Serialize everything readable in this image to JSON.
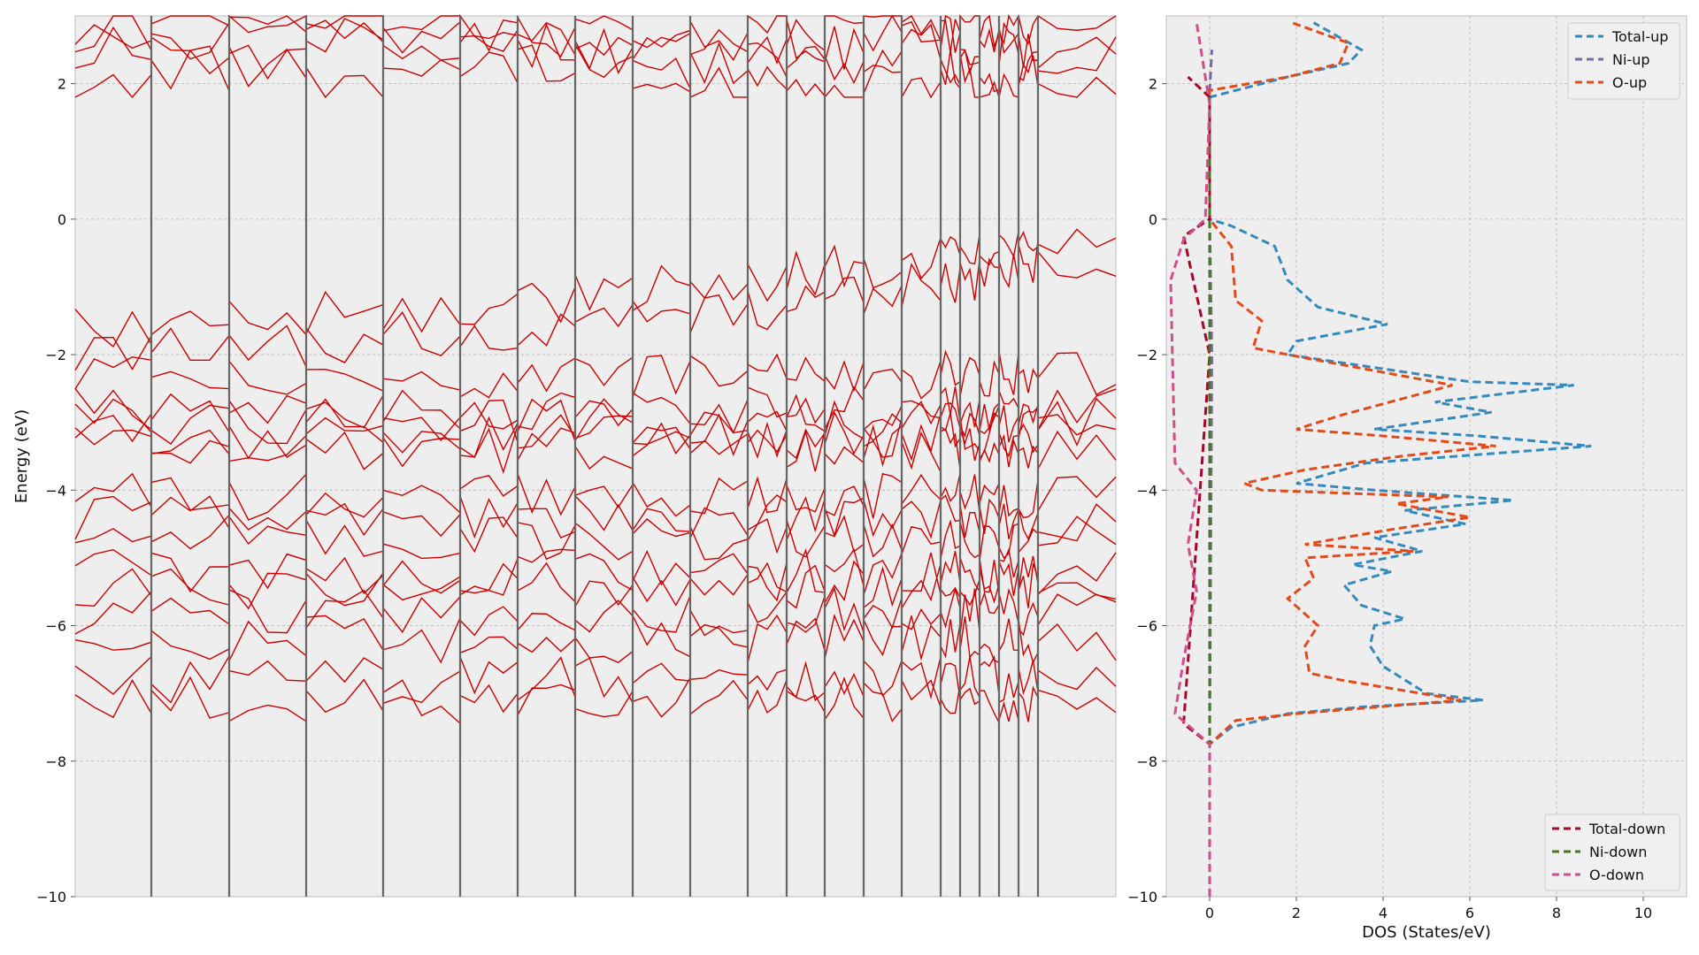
{
  "chart_data": [
    {
      "type": "line",
      "title": "",
      "xlabel": "",
      "ylabel": "Energy (eV)",
      "ylim": [
        -10,
        3
      ],
      "yticks": [
        -10,
        -8,
        -6,
        -4,
        -2,
        0,
        2
      ],
      "ytick_labels": [
        "−10",
        "−8",
        "−6",
        "−4",
        "−2",
        "0",
        "2"
      ],
      "grid": true,
      "band_color": "#cc0000",
      "segment_count": 18,
      "kpoints_per_segment": 4,
      "segment_boundaries": [
        0,
        1,
        2,
        3,
        4,
        5,
        6,
        7,
        8,
        9,
        10,
        11,
        12,
        13,
        14,
        15,
        16,
        17,
        18
      ],
      "conduction_bands_start": [
        1.8,
        2.1,
        2.25,
        2.6
      ],
      "valence_bands_start": [
        -1.6,
        -2.0,
        -2.3,
        -2.8,
        -3.0,
        -3.2,
        -3.4,
        -4.1,
        -4.4,
        -4.7,
        -5.2,
        -5.4,
        -5.8,
        -6.2,
        -6.8,
        -7.1
      ],
      "valence_band_maximum_trend": [
        -1.6,
        -0.9,
        -0.5,
        -0.05
      ]
    },
    {
      "type": "line",
      "title": "",
      "xlabel": "DOS (States/eV)",
      "ylabel": "",
      "xlim": [
        -1,
        11
      ],
      "ylim": [
        -10,
        3
      ],
      "xticks": [
        0,
        2,
        4,
        6,
        8,
        10
      ],
      "xtick_labels": [
        "0",
        "2",
        "4",
        "6",
        "8",
        "10"
      ],
      "yticks": [
        -10,
        -8,
        -6,
        -4,
        -2,
        0,
        2
      ],
      "ytick_labels": [
        "−10",
        "−8",
        "−6",
        "−4",
        "−2",
        "0",
        "2"
      ],
      "grid": true,
      "legend_upper": {
        "placement": "top-right",
        "entries": [
          "Total-up",
          "Ni-up",
          "O-up"
        ]
      },
      "legend_lower": {
        "placement": "bottom-right",
        "entries": [
          "Total-down",
          "Ni-down",
          "O-down"
        ]
      },
      "series": [
        {
          "name": "Total-up",
          "color": "#348abd",
          "points": [
            [
              0,
              -10
            ],
            [
              0,
              -7.75
            ],
            [
              0.5,
              -7.5
            ],
            [
              1.8,
              -7.3
            ],
            [
              3.5,
              -7.2
            ],
            [
              6.3,
              -7.1
            ],
            [
              5,
              -7.0
            ],
            [
              4,
              -6.6
            ],
            [
              3.7,
              -6.3
            ],
            [
              3.8,
              -6.0
            ],
            [
              4.5,
              -5.9
            ],
            [
              3.5,
              -5.7
            ],
            [
              3.1,
              -5.4
            ],
            [
              4.2,
              -5.2
            ],
            [
              3.3,
              -5.1
            ],
            [
              4.9,
              -4.9
            ],
            [
              3.8,
              -4.7
            ],
            [
              5.9,
              -4.5
            ],
            [
              4.5,
              -4.3
            ],
            [
              7,
              -4.15
            ],
            [
              3.8,
              -4.0
            ],
            [
              2,
              -3.9
            ],
            [
              3.6,
              -3.6
            ],
            [
              8.8,
              -3.35
            ],
            [
              6.2,
              -3.2
            ],
            [
              3.8,
              -3.1
            ],
            [
              6.5,
              -2.85
            ],
            [
              5.2,
              -2.7
            ],
            [
              8.4,
              -2.45
            ],
            [
              6,
              -2.4
            ],
            [
              1.8,
              -2.0
            ],
            [
              2,
              -1.8
            ],
            [
              4.1,
              -1.55
            ],
            [
              2.5,
              -1.3
            ],
            [
              1.8,
              -0.9
            ],
            [
              1.5,
              -0.4
            ],
            [
              0.5,
              -0.1
            ],
            [
              0,
              0
            ],
            [
              0,
              1.8
            ],
            [
              1.8,
              2.1
            ],
            [
              3.2,
              2.3
            ],
            [
              3.5,
              2.5
            ],
            [
              2.4,
              2.9
            ]
          ]
        },
        {
          "name": "Ni-up",
          "color": "#7a68a6",
          "points": [
            [
              0,
              -10
            ],
            [
              0,
              -7.7
            ],
            [
              0.05,
              -2.0
            ],
            [
              0,
              0
            ],
            [
              0,
              1.9
            ],
            [
              0.05,
              2.5
            ]
          ]
        },
        {
          "name": "O-up",
          "color": "#e24a1a",
          "points": [
            [
              0,
              -10
            ],
            [
              0,
              -7.75
            ],
            [
              0.6,
              -7.4
            ],
            [
              2,
              -7.3
            ],
            [
              5.8,
              -7.1
            ],
            [
              3,
              -6.8
            ],
            [
              2.3,
              -6.7
            ],
            [
              2.2,
              -6.3
            ],
            [
              2.5,
              -6.0
            ],
            [
              1.8,
              -5.6
            ],
            [
              2.4,
              -5.3
            ],
            [
              2.2,
              -5.0
            ],
            [
              4.7,
              -4.9
            ],
            [
              2.2,
              -4.8
            ],
            [
              4,
              -4.6
            ],
            [
              6,
              -4.4
            ],
            [
              4.3,
              -4.2
            ],
            [
              5.5,
              -4.1
            ],
            [
              1.2,
              -4.0
            ],
            [
              0.8,
              -3.9
            ],
            [
              2.2,
              -3.7
            ],
            [
              4.4,
              -3.5
            ],
            [
              6.6,
              -3.35
            ],
            [
              4,
              -3.2
            ],
            [
              2,
              -3.1
            ],
            [
              3,
              -2.9
            ],
            [
              5.6,
              -2.45
            ],
            [
              1.8,
              -2.0
            ],
            [
              1,
              -1.9
            ],
            [
              1.2,
              -1.5
            ],
            [
              0.6,
              -1.2
            ],
            [
              0.5,
              -0.4
            ],
            [
              0,
              0
            ],
            [
              0,
              1.9
            ],
            [
              1.8,
              2.1
            ],
            [
              3,
              2.3
            ],
            [
              3.2,
              2.6
            ],
            [
              1.9,
              2.9
            ]
          ]
        },
        {
          "name": "Total-down",
          "color": "#a60628",
          "points": [
            [
              0,
              -10
            ],
            [
              0,
              -7.75
            ],
            [
              -0.6,
              -7.45
            ],
            [
              0,
              -2.0
            ],
            [
              -0.6,
              -0.25
            ],
            [
              0,
              0
            ],
            [
              0,
              1.8
            ],
            [
              -0.5,
              2.1
            ]
          ]
        },
        {
          "name": "Ni-down",
          "color": "#467821",
          "points": [
            [
              0,
              -10
            ],
            [
              0,
              -7.75
            ],
            [
              0,
              0
            ],
            [
              0,
              1.8
            ]
          ]
        },
        {
          "name": "O-down",
          "color": "#cf4f8a",
          "points": [
            [
              0,
              -10
            ],
            [
              0,
              -7.75
            ],
            [
              -0.8,
              -7.3
            ],
            [
              -0.6,
              -6.5
            ],
            [
              -0.3,
              -5.5
            ],
            [
              -0.5,
              -4.8
            ],
            [
              -0.3,
              -4.0
            ],
            [
              -0.8,
              -3.6
            ],
            [
              -0.9,
              -0.9
            ],
            [
              -0.6,
              -0.3
            ],
            [
              -0.1,
              0
            ],
            [
              0,
              1.7
            ],
            [
              -0.2,
              2.5
            ],
            [
              -0.3,
              2.9
            ]
          ]
        }
      ]
    }
  ]
}
